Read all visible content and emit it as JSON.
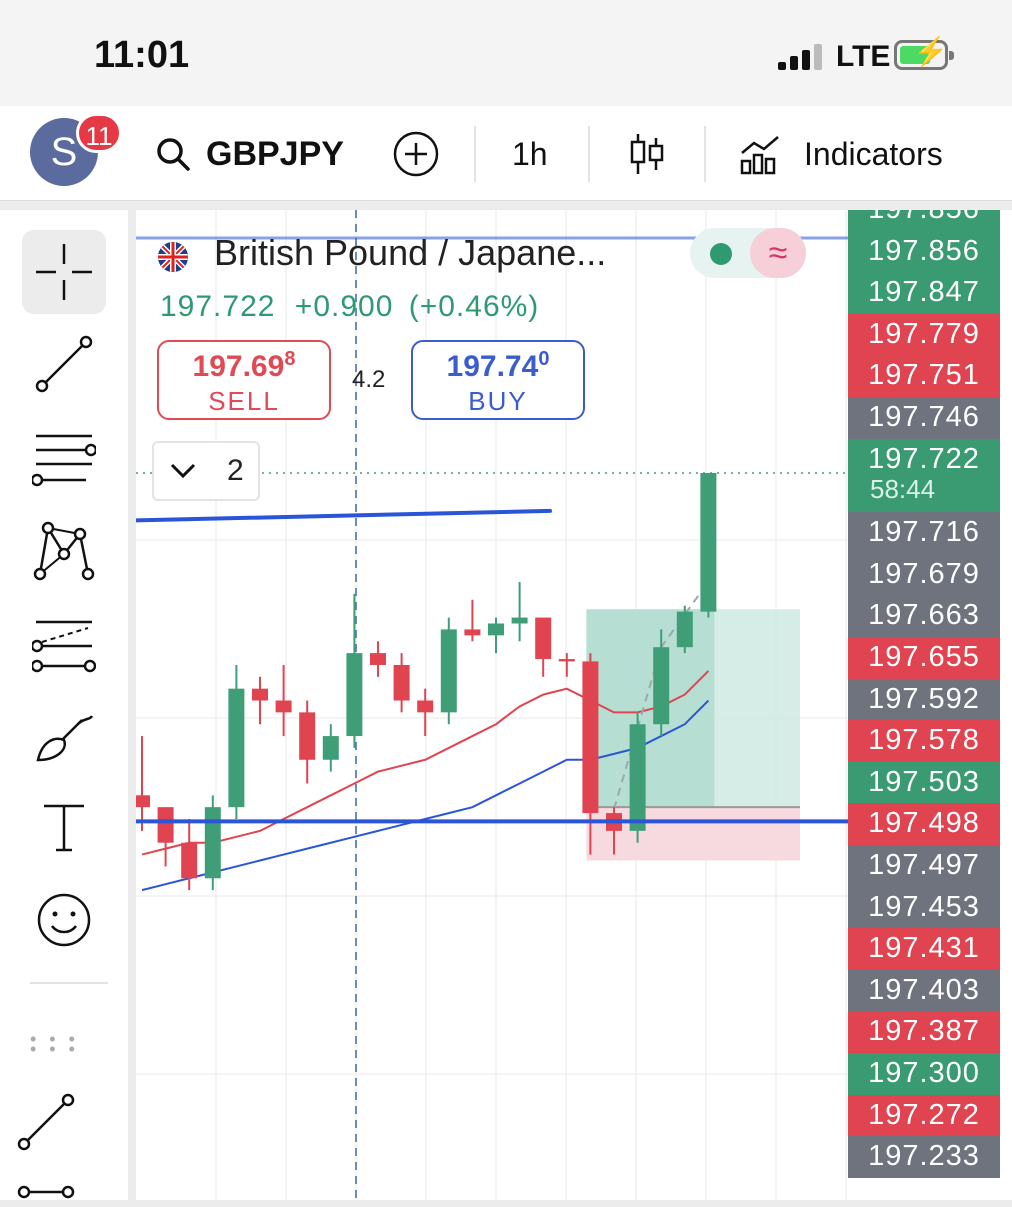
{
  "status_bar": {
    "time": "11:01",
    "network": "LTE"
  },
  "toolbar": {
    "avatar_letter": "S",
    "notification_count": "11",
    "symbol": "GBPJPY",
    "interval": "1h",
    "indicators_label": "Indicators"
  },
  "symbol_header": {
    "name": "British Pound / Japane...",
    "last_price": "197.722",
    "change": "+0.900",
    "change_pct": "(+0.46%)"
  },
  "trade": {
    "sell_price_main": "197.69",
    "sell_price_frac": "8",
    "sell_label": "SELL",
    "spread": "4.2",
    "buy_price_main": "197.74",
    "buy_price_frac": "0",
    "buy_label": "BUY"
  },
  "indicator_panel": {
    "count": "2"
  },
  "price_axis": {
    "countdown": "58:44",
    "labels": [
      {
        "text": "197.856",
        "color": "#3a9b72"
      },
      {
        "text": "197.856",
        "color": "#3a9b72"
      },
      {
        "text": "197.847",
        "color": "#3a9b72"
      },
      {
        "text": "197.779",
        "color": "#e04450"
      },
      {
        "text": "197.751",
        "color": "#e04450"
      },
      {
        "text": "197.746",
        "color": "#6f737d"
      },
      {
        "text": "197.722",
        "color": "#3a9b72"
      },
      {
        "text": "197.716",
        "color": "#6f737d"
      },
      {
        "text": "197.679",
        "color": "#6f737d"
      },
      {
        "text": "197.663",
        "color": "#6f737d"
      },
      {
        "text": "197.655",
        "color": "#e04450"
      },
      {
        "text": "197.592",
        "color": "#6f737d"
      },
      {
        "text": "197.578",
        "color": "#e04450"
      },
      {
        "text": "197.503",
        "color": "#3a9b72"
      },
      {
        "text": "197.498",
        "color": "#e04450"
      },
      {
        "text": "197.497",
        "color": "#6f737d"
      },
      {
        "text": "197.453",
        "color": "#6f737d"
      },
      {
        "text": "197.431",
        "color": "#e04450"
      },
      {
        "text": "197.403",
        "color": "#6f737d"
      },
      {
        "text": "197.387",
        "color": "#e04450"
      },
      {
        "text": "197.300",
        "color": "#3a9b72"
      },
      {
        "text": "197.272",
        "color": "#e04450"
      },
      {
        "text": "197.233",
        "color": "#6f737d"
      }
    ]
  },
  "colors": {
    "bull": "#3f9e78",
    "bear": "#e04450",
    "blue_line": "#2a55d6",
    "ema_red": "#e04450",
    "ema_blue": "#2a55d6"
  },
  "candles": [
    {
      "o": 197.45,
      "h": 197.5,
      "l": 197.42,
      "c": 197.44
    },
    {
      "o": 197.44,
      "h": 197.44,
      "l": 197.39,
      "c": 197.41
    },
    {
      "o": 197.41,
      "h": 197.43,
      "l": 197.37,
      "c": 197.38
    },
    {
      "o": 197.38,
      "h": 197.45,
      "l": 197.37,
      "c": 197.44
    },
    {
      "o": 197.44,
      "h": 197.56,
      "l": 197.43,
      "c": 197.54
    },
    {
      "o": 197.54,
      "h": 197.55,
      "l": 197.51,
      "c": 197.53
    },
    {
      "o": 197.53,
      "h": 197.56,
      "l": 197.5,
      "c": 197.52
    },
    {
      "o": 197.52,
      "h": 197.53,
      "l": 197.46,
      "c": 197.48
    },
    {
      "o": 197.48,
      "h": 197.51,
      "l": 197.47,
      "c": 197.5
    },
    {
      "o": 197.5,
      "h": 197.62,
      "l": 197.49,
      "c": 197.57
    },
    {
      "o": 197.57,
      "h": 197.58,
      "l": 197.55,
      "c": 197.56
    },
    {
      "o": 197.56,
      "h": 197.57,
      "l": 197.52,
      "c": 197.53
    },
    {
      "o": 197.53,
      "h": 197.54,
      "l": 197.5,
      "c": 197.52
    },
    {
      "o": 197.52,
      "h": 197.6,
      "l": 197.51,
      "c": 197.59
    },
    {
      "o": 197.59,
      "h": 197.615,
      "l": 197.58,
      "c": 197.585
    },
    {
      "o": 197.585,
      "h": 197.6,
      "l": 197.57,
      "c": 197.595
    },
    {
      "o": 197.595,
      "h": 197.63,
      "l": 197.58,
      "c": 197.6
    },
    {
      "o": 197.6,
      "h": 197.6,
      "l": 197.55,
      "c": 197.565
    },
    {
      "o": 197.565,
      "h": 197.57,
      "l": 197.55,
      "c": 197.563
    },
    {
      "o": 197.563,
      "h": 197.57,
      "l": 197.4,
      "c": 197.435
    },
    {
      "o": 197.435,
      "h": 197.44,
      "l": 197.4,
      "c": 197.42
    },
    {
      "o": 197.42,
      "h": 197.52,
      "l": 197.41,
      "c": 197.51
    },
    {
      "o": 197.51,
      "h": 197.59,
      "l": 197.5,
      "c": 197.575
    },
    {
      "o": 197.575,
      "h": 197.61,
      "l": 197.57,
      "c": 197.605
    },
    {
      "o": 197.605,
      "h": 197.722,
      "l": 197.6,
      "c": 197.722
    }
  ],
  "ema_red": [
    197.4,
    197.405,
    197.41,
    197.41,
    197.415,
    197.42,
    197.43,
    197.44,
    197.45,
    197.46,
    197.47,
    197.475,
    197.48,
    197.49,
    197.5,
    197.51,
    197.525,
    197.535,
    197.54,
    197.53,
    197.52,
    197.52,
    197.525,
    197.535,
    197.555
  ],
  "ema_blue": [
    197.37,
    197.375,
    197.38,
    197.385,
    197.39,
    197.395,
    197.4,
    197.405,
    197.41,
    197.415,
    197.42,
    197.425,
    197.43,
    197.435,
    197.44,
    197.45,
    197.46,
    197.47,
    197.48,
    197.48,
    197.485,
    197.49,
    197.5,
    197.51,
    197.53
  ],
  "levels": {
    "horizontal_support": 197.428,
    "trendline_start": 197.682,
    "trendline_end": 197.69,
    "position_entry": 197.44,
    "position_target": 197.607,
    "position_stop": 197.395
  }
}
